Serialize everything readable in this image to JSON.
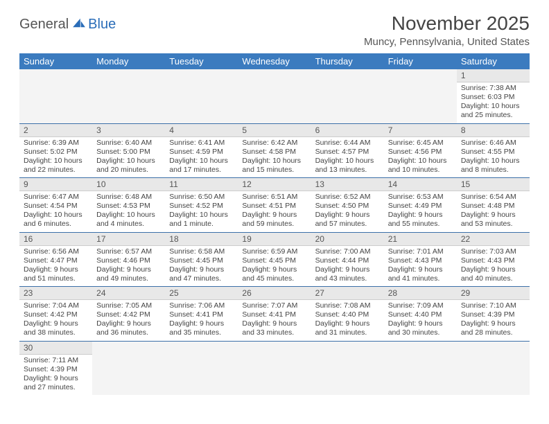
{
  "logo": {
    "text1": "General",
    "text2": "Blue"
  },
  "title": "November 2025",
  "location": "Muncy, Pennsylvania, United States",
  "colors": {
    "header_bg": "#3b7bbf",
    "header_text": "#ffffff",
    "daynum_bg": "#e8e8e8",
    "row_border": "#3b6fa8",
    "logo_accent": "#2a6db8"
  },
  "weekdays": [
    "Sunday",
    "Monday",
    "Tuesday",
    "Wednesday",
    "Thursday",
    "Friday",
    "Saturday"
  ],
  "weeks": [
    [
      null,
      null,
      null,
      null,
      null,
      null,
      {
        "n": "1",
        "sr": "Sunrise: 7:38 AM",
        "ss": "Sunset: 6:03 PM",
        "dl": "Daylight: 10 hours and 25 minutes."
      }
    ],
    [
      {
        "n": "2",
        "sr": "Sunrise: 6:39 AM",
        "ss": "Sunset: 5:02 PM",
        "dl": "Daylight: 10 hours and 22 minutes."
      },
      {
        "n": "3",
        "sr": "Sunrise: 6:40 AM",
        "ss": "Sunset: 5:00 PM",
        "dl": "Daylight: 10 hours and 20 minutes."
      },
      {
        "n": "4",
        "sr": "Sunrise: 6:41 AM",
        "ss": "Sunset: 4:59 PM",
        "dl": "Daylight: 10 hours and 17 minutes."
      },
      {
        "n": "5",
        "sr": "Sunrise: 6:42 AM",
        "ss": "Sunset: 4:58 PM",
        "dl": "Daylight: 10 hours and 15 minutes."
      },
      {
        "n": "6",
        "sr": "Sunrise: 6:44 AM",
        "ss": "Sunset: 4:57 PM",
        "dl": "Daylight: 10 hours and 13 minutes."
      },
      {
        "n": "7",
        "sr": "Sunrise: 6:45 AM",
        "ss": "Sunset: 4:56 PM",
        "dl": "Daylight: 10 hours and 10 minutes."
      },
      {
        "n": "8",
        "sr": "Sunrise: 6:46 AM",
        "ss": "Sunset: 4:55 PM",
        "dl": "Daylight: 10 hours and 8 minutes."
      }
    ],
    [
      {
        "n": "9",
        "sr": "Sunrise: 6:47 AM",
        "ss": "Sunset: 4:54 PM",
        "dl": "Daylight: 10 hours and 6 minutes."
      },
      {
        "n": "10",
        "sr": "Sunrise: 6:48 AM",
        "ss": "Sunset: 4:53 PM",
        "dl": "Daylight: 10 hours and 4 minutes."
      },
      {
        "n": "11",
        "sr": "Sunrise: 6:50 AM",
        "ss": "Sunset: 4:52 PM",
        "dl": "Daylight: 10 hours and 1 minute."
      },
      {
        "n": "12",
        "sr": "Sunrise: 6:51 AM",
        "ss": "Sunset: 4:51 PM",
        "dl": "Daylight: 9 hours and 59 minutes."
      },
      {
        "n": "13",
        "sr": "Sunrise: 6:52 AM",
        "ss": "Sunset: 4:50 PM",
        "dl": "Daylight: 9 hours and 57 minutes."
      },
      {
        "n": "14",
        "sr": "Sunrise: 6:53 AM",
        "ss": "Sunset: 4:49 PM",
        "dl": "Daylight: 9 hours and 55 minutes."
      },
      {
        "n": "15",
        "sr": "Sunrise: 6:54 AM",
        "ss": "Sunset: 4:48 PM",
        "dl": "Daylight: 9 hours and 53 minutes."
      }
    ],
    [
      {
        "n": "16",
        "sr": "Sunrise: 6:56 AM",
        "ss": "Sunset: 4:47 PM",
        "dl": "Daylight: 9 hours and 51 minutes."
      },
      {
        "n": "17",
        "sr": "Sunrise: 6:57 AM",
        "ss": "Sunset: 4:46 PM",
        "dl": "Daylight: 9 hours and 49 minutes."
      },
      {
        "n": "18",
        "sr": "Sunrise: 6:58 AM",
        "ss": "Sunset: 4:45 PM",
        "dl": "Daylight: 9 hours and 47 minutes."
      },
      {
        "n": "19",
        "sr": "Sunrise: 6:59 AM",
        "ss": "Sunset: 4:45 PM",
        "dl": "Daylight: 9 hours and 45 minutes."
      },
      {
        "n": "20",
        "sr": "Sunrise: 7:00 AM",
        "ss": "Sunset: 4:44 PM",
        "dl": "Daylight: 9 hours and 43 minutes."
      },
      {
        "n": "21",
        "sr": "Sunrise: 7:01 AM",
        "ss": "Sunset: 4:43 PM",
        "dl": "Daylight: 9 hours and 41 minutes."
      },
      {
        "n": "22",
        "sr": "Sunrise: 7:03 AM",
        "ss": "Sunset: 4:43 PM",
        "dl": "Daylight: 9 hours and 40 minutes."
      }
    ],
    [
      {
        "n": "23",
        "sr": "Sunrise: 7:04 AM",
        "ss": "Sunset: 4:42 PM",
        "dl": "Daylight: 9 hours and 38 minutes."
      },
      {
        "n": "24",
        "sr": "Sunrise: 7:05 AM",
        "ss": "Sunset: 4:42 PM",
        "dl": "Daylight: 9 hours and 36 minutes."
      },
      {
        "n": "25",
        "sr": "Sunrise: 7:06 AM",
        "ss": "Sunset: 4:41 PM",
        "dl": "Daylight: 9 hours and 35 minutes."
      },
      {
        "n": "26",
        "sr": "Sunrise: 7:07 AM",
        "ss": "Sunset: 4:41 PM",
        "dl": "Daylight: 9 hours and 33 minutes."
      },
      {
        "n": "27",
        "sr": "Sunrise: 7:08 AM",
        "ss": "Sunset: 4:40 PM",
        "dl": "Daylight: 9 hours and 31 minutes."
      },
      {
        "n": "28",
        "sr": "Sunrise: 7:09 AM",
        "ss": "Sunset: 4:40 PM",
        "dl": "Daylight: 9 hours and 30 minutes."
      },
      {
        "n": "29",
        "sr": "Sunrise: 7:10 AM",
        "ss": "Sunset: 4:39 PM",
        "dl": "Daylight: 9 hours and 28 minutes."
      }
    ],
    [
      {
        "n": "30",
        "sr": "Sunrise: 7:11 AM",
        "ss": "Sunset: 4:39 PM",
        "dl": "Daylight: 9 hours and 27 minutes."
      },
      null,
      null,
      null,
      null,
      null,
      null
    ]
  ]
}
